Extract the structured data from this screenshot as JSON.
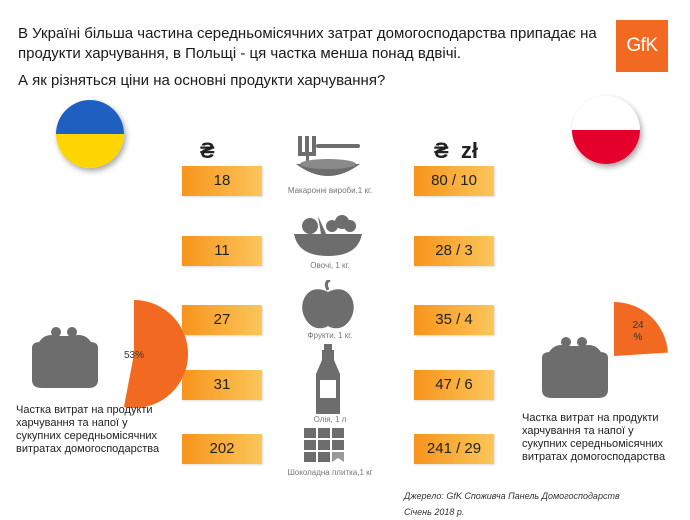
{
  "header": {
    "title": "В Україні більша частина середньомісячних затрат домогосподарства припадає на продукти харчування, в Польщі - ця частка менша понад вдвічі.",
    "question": "А як різняться ціни на основні продукти харчування?"
  },
  "logo": {
    "text": "GfK",
    "color": "#f26a21"
  },
  "flags": {
    "ukraine": {
      "colors": [
        "#1f5fbf",
        "#ffd500"
      ]
    },
    "poland": {
      "colors": [
        "#ffffff",
        "#e4002b"
      ]
    }
  },
  "currency": {
    "uah_symbol": "₴",
    "pln_symbols": "₴  zł"
  },
  "products": [
    {
      "label": "Макаронні вироби,1 кг.",
      "uah": "18",
      "pln": "80 / 10",
      "icon": "pasta-icon"
    },
    {
      "label": "Овочі, 1 кг.",
      "uah": "11",
      "pln": "28 / 3",
      "icon": "vegetables-icon"
    },
    {
      "label": "Фрукти, 1 кг.",
      "uah": "27",
      "pln": "35 / 4",
      "icon": "apple-icon"
    },
    {
      "label": "Олія, 1 л",
      "uah": "31",
      "pln": "47 / 6",
      "icon": "oil-bottle-icon"
    },
    {
      "label": "Шоколадна плитка,1 кг",
      "uah": "202",
      "pln": "241 / 29",
      "icon": "chocolate-icon"
    }
  ],
  "share": {
    "ukraine": {
      "percent_label": "53%",
      "value": 53,
      "caption": "Частка витрат на продукти харчування та напої у сукупних середньомісячних витратах домогосподарства"
    },
    "poland": {
      "percent_label": "24 %",
      "value": 24,
      "caption": "Частка витрат на продукти харчування та напої у сукупних середньомісячних витратах домогосподарства"
    },
    "accent": "#f26a21"
  },
  "source": {
    "line1": "Джерело: GfK  Споживча Панель Домогосподарств",
    "line2": "Січень 2018 р."
  }
}
